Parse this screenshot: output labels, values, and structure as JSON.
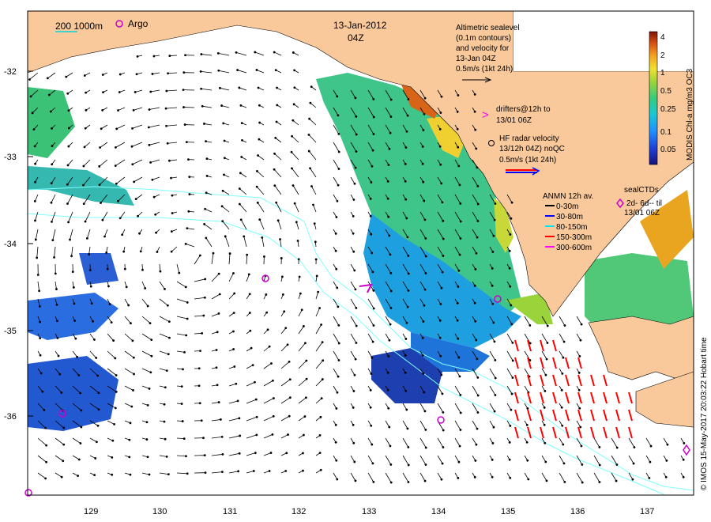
{
  "title": {
    "date": "13-Jan-2012",
    "time": "04Z"
  },
  "scale_bar": {
    "label": "200  1000m"
  },
  "argo": {
    "label": "Argo"
  },
  "altimetry": {
    "line1": "Altimetric sealevel",
    "line2": "(0.1m contours)",
    "line3": "and velocity for",
    "line4": "13-Jan 04Z",
    "line5": "0.5m/s (1kt 24h)"
  },
  "drifters": {
    "line1": "drifters@12h to",
    "line2": "13/01 06Z"
  },
  "hf_radar": {
    "line1": "HF radar velocity",
    "line2": "13/12h 04Z) noQC",
    "line3": "0.5m/s (1kt 24h)"
  },
  "anmn": {
    "title": "ANMN 12h av.",
    "items": [
      {
        "label": "0-30m",
        "color": "#000000"
      },
      {
        "label": "30-80m",
        "color": "#0000ff"
      },
      {
        "label": "80-150m",
        "color": "#00e5ee"
      },
      {
        "label": "150-300m",
        "color": "#ff0000"
      },
      {
        "label": "300-600m",
        "color": "#ff00ff"
      }
    ]
  },
  "seal_ctds": {
    "line1": "sealCTDs",
    "line2": "2d- 6d-- til",
    "line3": "13/01 06Z"
  },
  "colorbar": {
    "title": "MODIS Chl-a mg/m3 OC3",
    "ticks": [
      "4",
      "2",
      "1",
      "0.5",
      "0.25",
      "0.1",
      "0.05"
    ]
  },
  "credit": "© IMOS 15-May-2017 20:03:22 Hobart time",
  "axes": {
    "lat_labels": [
      "-32",
      "-33",
      "-34",
      "-35",
      "-36"
    ],
    "lon_labels": [
      "129",
      "130",
      "131",
      "132",
      "133",
      "134",
      "135",
      "136",
      "137"
    ]
  },
  "colors": {
    "land": "#f9c99c",
    "coast_line": "#000000",
    "contour": "#7fffff",
    "argo": "#cc00cc"
  }
}
